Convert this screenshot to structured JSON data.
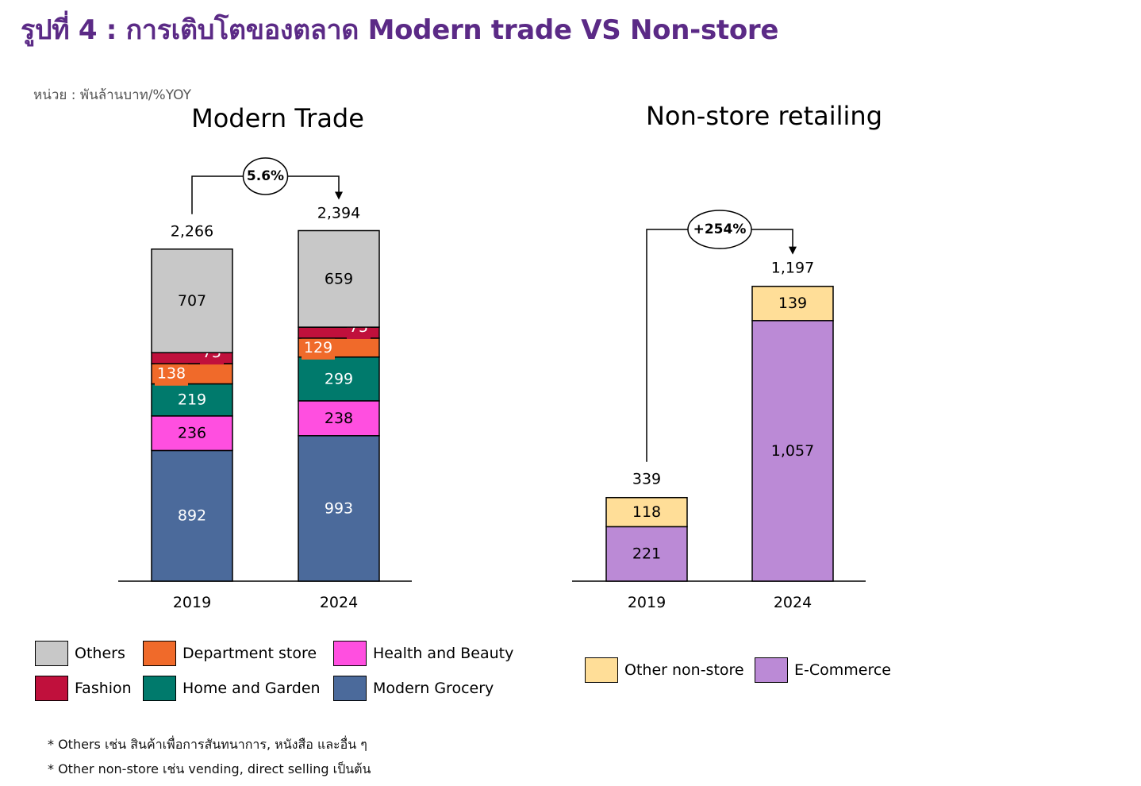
{
  "title": "รูปที่ 4 : การเติบโตของตลาด Modern trade VS  Non-store",
  "unit_note": "หน่วย : พันล้านบาท/%YOY",
  "colors": {
    "others": "#c8c8c8",
    "fashion": "#c0103c",
    "department_store": "#f06a2a",
    "home_garden": "#007a6c",
    "health_beauty": "#ff4fe0",
    "modern_grocery": "#4b6a9b",
    "other_non_store": "#ffde98",
    "e_commerce": "#bb8ad6"
  },
  "chart_data": [
    {
      "type": "bar",
      "stacked": true,
      "title": "Modern Trade",
      "categories": [
        "2019",
        "2024"
      ],
      "series": [
        {
          "name": "Modern Grocery",
          "values": [
            892,
            993
          ],
          "value_labels": [
            "892",
            "993"
          ],
          "color_key": "modern_grocery"
        },
        {
          "name": "Health and Beauty",
          "values": [
            236,
            238
          ],
          "value_labels": [
            "236",
            "238"
          ],
          "color_key": "health_beauty"
        },
        {
          "name": "Home and Garden",
          "values": [
            219,
            299
          ],
          "value_labels": [
            "219",
            "299"
          ],
          "color_key": "home_garden"
        },
        {
          "name": "Department store",
          "values": [
            138,
            129
          ],
          "value_labels": [
            "138",
            "129"
          ],
          "color_key": "department_store"
        },
        {
          "name": "Fashion",
          "values": [
            75,
            75
          ],
          "value_labels": [
            "75",
            "75"
          ],
          "color_key": "fashion"
        },
        {
          "name": "Others",
          "values": [
            707,
            659
          ],
          "value_labels": [
            "707",
            "659"
          ],
          "color_key": "others"
        }
      ],
      "totals": [
        2266,
        2394
      ],
      "total_labels": [
        "2,266",
        "2,394"
      ],
      "growth_label": "5.6%",
      "legend_order": [
        "Others",
        "Department store",
        "Health and Beauty",
        "Fashion",
        "Home and Garden",
        "Modern Grocery"
      ],
      "legend_placement": "bottom",
      "grid": false
    },
    {
      "type": "bar",
      "stacked": true,
      "title": "Non-store retailing",
      "categories": [
        "2019",
        "2024"
      ],
      "series": [
        {
          "name": "E-Commerce",
          "values": [
            221,
            1057
          ],
          "value_labels": [
            "221",
            "1,057"
          ],
          "color_key": "e_commerce"
        },
        {
          "name": "Other non-store",
          "values": [
            118,
            139
          ],
          "value_labels": [
            "118",
            "139"
          ],
          "color_key": "other_non_store"
        }
      ],
      "totals": [
        339,
        1197
      ],
      "total_labels": [
        "339",
        "1,197"
      ],
      "growth_label": "+254%",
      "legend_order": [
        "Other non-store",
        "E-Commerce"
      ],
      "legend_placement": "bottom",
      "grid": false
    }
  ],
  "footnotes": [
    "* Others เช่น สินค้าเพื่อการสันทนาการ, หนังสือ และอื่น ๆ",
    "* Other non-store เช่น vending, direct selling เป็นต้น"
  ]
}
